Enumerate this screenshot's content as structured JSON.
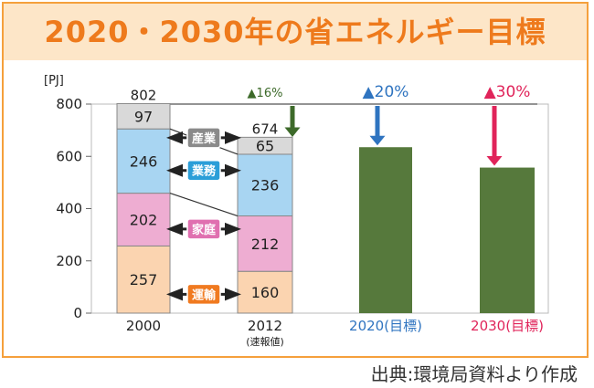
{
  "title": "2020・2030年の省エネルギー目標",
  "source": "出典:環境局資料より作成",
  "colors": {
    "frame": "#f5a03c",
    "title_band": "#fde6c8",
    "title_text": "#ee7a1c",
    "transport": "#fbd4b0",
    "household": "#eeadd2",
    "business": "#a8d5f2",
    "industry": "#d9d9d9",
    "target_bar": "#56793c",
    "target_2020": "#2f74c0",
    "target_2030": "#e0245a",
    "dark_arrow": "#3d6a2a"
  },
  "chart_data": {
    "type": "bar",
    "unit_label": "[PJ]",
    "ylim": [
      0,
      800
    ],
    "yticks": [
      0,
      200,
      400,
      600,
      800
    ],
    "categories": [
      "2000",
      "2012",
      "2020(目標)",
      "2030(目標)"
    ],
    "category_sub": [
      "",
      "(速報値)",
      "",
      ""
    ],
    "stacked": [
      {
        "year": "2000",
        "segments": [
          257,
          202,
          246,
          97
        ],
        "total": "802"
      },
      {
        "year": "2012",
        "segments": [
          160,
          212,
          236,
          65
        ],
        "total": "674"
      }
    ],
    "series_names": [
      "運輸",
      "家庭",
      "業務",
      "産業"
    ],
    "targets": [
      {
        "year": "2020(目標)",
        "value": 635,
        "reduction": "▲20%"
      },
      {
        "year": "2030(目標)",
        "value": 557,
        "reduction": "▲30%"
      }
    ],
    "annotation_2012": "▲16%"
  }
}
